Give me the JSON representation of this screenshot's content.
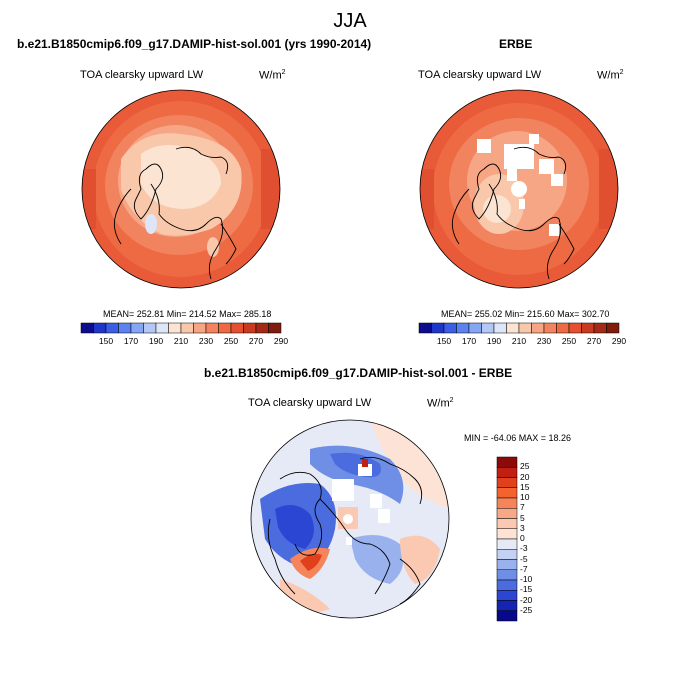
{
  "page_title": "JJA",
  "panels": [
    {
      "title": "b.e21.B1850cmip6.f09_g17.DAMIP-hist-sol.001 (yrs 1990-2014)",
      "variable": "TOA clearsky upward LW",
      "units_base": "W/m",
      "units_exp": "2",
      "stats": "MEAN= 252.81  Min= 214.52  Max= 285.18"
    },
    {
      "title": "ERBE",
      "variable": "TOA clearsky upward LW",
      "units_base": "W/m",
      "units_exp": "2",
      "stats": "MEAN= 255.02  Min= 215.60  Max= 302.70"
    },
    {
      "title": "b.e21.B1850cmip6.f09_g17.DAMIP-hist-sol.001 - ERBE",
      "variable": "TOA clearsky upward LW",
      "units_base": "W/m",
      "units_exp": "2",
      "stats": "MIN = -64.06  MAX =  18.26"
    }
  ],
  "absolute_colorbar": {
    "tick_labels": [
      "150",
      "170",
      "190",
      "210",
      "230",
      "250",
      "270",
      "290"
    ],
    "colors": [
      "#0c0c8c",
      "#1f37c8",
      "#3a5ee6",
      "#5b82ef",
      "#85a6f3",
      "#b3c8f6",
      "#dde6f8",
      "#fbe4d2",
      "#f9c8ab",
      "#f6a684",
      "#f2835f",
      "#ed6a43",
      "#e55030",
      "#c93a22",
      "#a32a17",
      "#7f1c0e"
    ]
  },
  "difference_colorbar": {
    "levels": [
      "25",
      "20",
      "15",
      "10",
      "7",
      "5",
      "3",
      "0",
      "-3",
      "-5",
      "-7",
      "-10",
      "-15",
      "-20",
      "-25"
    ],
    "colors": [
      "#8b0a0a",
      "#c01f12",
      "#e0401c",
      "#f2632e",
      "#f5845a",
      "#f8a787",
      "#fbc8b1",
      "#fde3d6",
      "#e6eaf7",
      "#c3d1f4",
      "#99b2ee",
      "#6f8fe6",
      "#4a6cde",
      "#2c46d4",
      "#1525b2",
      "#08088a"
    ]
  }
}
